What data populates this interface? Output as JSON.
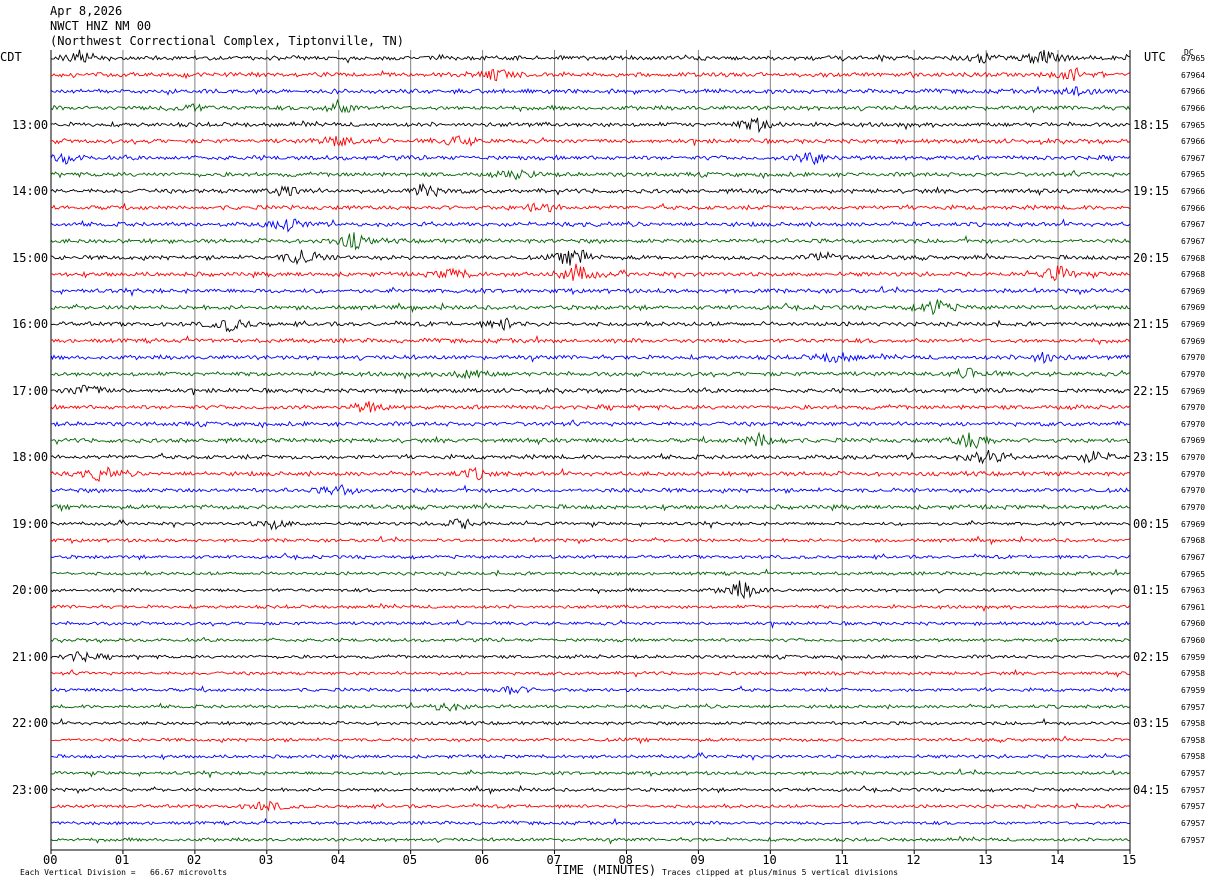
{
  "header": {
    "date": "Apr 8,2026",
    "station": "NWCT HNZ NM 00",
    "location": "(Northwest Correctional Complex, Tiptonville, TN)"
  },
  "axis": {
    "left_label": "CDT",
    "right_label": "UTC",
    "dc_label": "DC",
    "xlabel": "TIME (MINUTES)"
  },
  "footer": {
    "scale_note": "Each Vertical Division =   66.67 microvolts",
    "clip_note": "Traces clipped at plus/minus 5 vertical divisions"
  },
  "colors": {
    "trace_cycle": [
      "#000000",
      "#ff0000",
      "#0000ff",
      "#006400"
    ],
    "grid": "#808080"
  },
  "chart_data": {
    "type": "line",
    "title": "NWCT HNZ NM 00",
    "xlabel": "TIME (MINUTES)",
    "xlim": [
      0,
      15
    ],
    "x_ticks": [
      "00",
      "01",
      "02",
      "03",
      "04",
      "05",
      "06",
      "07",
      "08",
      "09",
      "10",
      "11",
      "12",
      "13",
      "14",
      "15"
    ],
    "traces_per_hour": 4,
    "minutes_per_trace": 15,
    "left_hour_labels": [
      "13:00",
      "14:00",
      "15:00",
      "16:00",
      "17:00",
      "18:00",
      "19:00",
      "20:00",
      "21:00",
      "22:00",
      "23:00"
    ],
    "right_hour_labels": [
      "18:15",
      "19:15",
      "20:15",
      "21:15",
      "22:15",
      "23:15",
      "00:15",
      "01:15",
      "02:15",
      "03:15",
      "04:15"
    ],
    "dc_offsets": [
      "67965",
      "67964",
      "67966",
      "67966",
      "67965",
      "67966",
      "67967",
      "67965",
      "67966",
      "67966",
      "67967",
      "67967",
      "67968",
      "67968",
      "67969",
      "67969",
      "67969",
      "67969",
      "67970",
      "67970",
      "67969",
      "67970",
      "67970",
      "67969",
      "67970",
      "67970",
      "67970",
      "67970",
      "67969",
      "67968",
      "67967",
      "67965",
      "67963",
      "67961",
      "67960",
      "67960",
      "67959",
      "67958",
      "67959",
      "67957",
      "67958",
      "67958",
      "67958",
      "67957",
      "67957",
      "67957",
      "67957",
      "67957"
    ],
    "events": [
      {
        "trace": 0,
        "minute": 0.4,
        "amp": 2.0
      },
      {
        "trace": 0,
        "minute": 12.9,
        "amp": 1.8
      },
      {
        "trace": 0,
        "minute": 13.8,
        "amp": 3.0
      },
      {
        "trace": 1,
        "minute": 6.2,
        "amp": 1.8
      },
      {
        "trace": 1,
        "minute": 14.2,
        "amp": 2.0
      },
      {
        "trace": 2,
        "minute": 14.3,
        "amp": 2.0
      },
      {
        "trace": 3,
        "minute": 4.0,
        "amp": 2.0
      },
      {
        "trace": 3,
        "minute": 1.9,
        "amp": 1.4
      },
      {
        "trace": 4,
        "minute": 9.8,
        "amp": 2.2
      },
      {
        "trace": 5,
        "minute": 4.0,
        "amp": 2.0
      },
      {
        "trace": 5,
        "minute": 5.7,
        "amp": 1.6
      },
      {
        "trace": 6,
        "minute": 10.6,
        "amp": 2.2
      },
      {
        "trace": 6,
        "minute": 0.2,
        "amp": 1.5
      },
      {
        "trace": 7,
        "minute": 6.5,
        "amp": 1.6
      },
      {
        "trace": 8,
        "minute": 5.2,
        "amp": 2.4
      },
      {
        "trace": 8,
        "minute": 3.3,
        "amp": 1.8
      },
      {
        "trace": 9,
        "minute": 6.8,
        "amp": 1.6
      },
      {
        "trace": 10,
        "minute": 3.3,
        "amp": 2.0
      },
      {
        "trace": 11,
        "minute": 4.2,
        "amp": 2.6
      },
      {
        "trace": 12,
        "minute": 3.5,
        "amp": 2.8
      },
      {
        "trace": 12,
        "minute": 7.3,
        "amp": 3.0
      },
      {
        "trace": 12,
        "minute": 10.7,
        "amp": 1.8
      },
      {
        "trace": 13,
        "minute": 7.3,
        "amp": 3.0
      },
      {
        "trace": 13,
        "minute": 14.0,
        "amp": 2.4
      },
      {
        "trace": 13,
        "minute": 5.6,
        "amp": 1.8
      },
      {
        "trace": 15,
        "minute": 12.3,
        "amp": 2.4
      },
      {
        "trace": 16,
        "minute": 2.5,
        "amp": 2.2
      },
      {
        "trace": 16,
        "minute": 6.3,
        "amp": 1.6
      },
      {
        "trace": 18,
        "minute": 10.9,
        "amp": 2.0
      },
      {
        "trace": 18,
        "minute": 13.8,
        "amp": 1.6
      },
      {
        "trace": 19,
        "minute": 5.8,
        "amp": 2.0
      },
      {
        "trace": 19,
        "minute": 12.8,
        "amp": 1.6
      },
      {
        "trace": 20,
        "minute": 0.5,
        "amp": 2.0
      },
      {
        "trace": 21,
        "minute": 4.4,
        "amp": 1.8
      },
      {
        "trace": 23,
        "minute": 9.9,
        "amp": 2.6
      },
      {
        "trace": 23,
        "minute": 12.8,
        "amp": 3.0
      },
      {
        "trace": 24,
        "minute": 13.0,
        "amp": 2.6
      },
      {
        "trace": 24,
        "minute": 14.5,
        "amp": 2.0
      },
      {
        "trace": 25,
        "minute": 0.7,
        "amp": 2.2
      },
      {
        "trace": 25,
        "minute": 5.9,
        "amp": 1.6
      },
      {
        "trace": 26,
        "minute": 4.0,
        "amp": 1.6
      },
      {
        "trace": 28,
        "minute": 3.1,
        "amp": 1.6
      },
      {
        "trace": 28,
        "minute": 5.7,
        "amp": 1.6
      },
      {
        "trace": 32,
        "minute": 9.6,
        "amp": 3.2
      },
      {
        "trace": 36,
        "minute": 0.4,
        "amp": 1.6
      },
      {
        "trace": 38,
        "minute": 6.4,
        "amp": 1.5
      },
      {
        "trace": 39,
        "minute": 5.5,
        "amp": 1.6
      },
      {
        "trace": 45,
        "minute": 3.0,
        "amp": 1.8
      }
    ]
  }
}
